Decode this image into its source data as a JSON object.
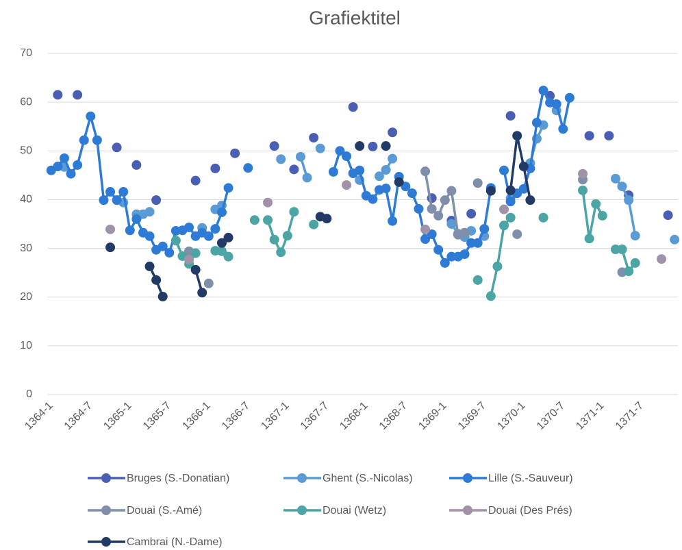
{
  "chart_data": {
    "type": "line",
    "title": "Grafiektitel",
    "categories": [
      "1364-1",
      null,
      null,
      null,
      null,
      null,
      "1364-7",
      null,
      null,
      null,
      null,
      null,
      "1365-1",
      null,
      null,
      null,
      null,
      null,
      "1365-7",
      null,
      null,
      null,
      null,
      null,
      "1366-1",
      null,
      null,
      null,
      null,
      null,
      "1366-7",
      null,
      null,
      null,
      null,
      null,
      "1367-1",
      null,
      null,
      null,
      null,
      null,
      "1367-7",
      null,
      null,
      null,
      null,
      null,
      "1368-1",
      null,
      null,
      null,
      null,
      null,
      "1368-7",
      null,
      null,
      null,
      null,
      null,
      "1369-1",
      null,
      null,
      null,
      null,
      null,
      "1369-7",
      null,
      null,
      null,
      null,
      null,
      "1370-1",
      null,
      null,
      null,
      null,
      null,
      "1370-7",
      null,
      null,
      null,
      null,
      null,
      "1371-1",
      null,
      null,
      null,
      null,
      null,
      "1371-7",
      null,
      null,
      null,
      null,
      null
    ],
    "ylim": [
      0,
      70
    ],
    "yticks": [
      0,
      10,
      20,
      30,
      40,
      50,
      60,
      70
    ],
    "grid": true,
    "legend": "bottom",
    "series": [
      {
        "name": "Bruges (S.-Donatian)",
        "color": "#4a5fb4",
        "values": [
          null,
          61.5,
          null,
          null,
          61.5,
          null,
          null,
          null,
          null,
          null,
          50.7,
          null,
          null,
          47.1,
          null,
          null,
          39.9,
          null,
          null,
          null,
          null,
          null,
          43.9,
          null,
          null,
          46.4,
          null,
          null,
          49.5,
          null,
          null,
          null,
          null,
          null,
          51.0,
          null,
          null,
          46.2,
          null,
          null,
          52.7,
          null,
          null,
          null,
          null,
          null,
          59.0,
          null,
          null,
          50.9,
          null,
          null,
          53.8,
          null,
          null,
          null,
          null,
          null,
          40.3,
          null,
          null,
          35.7,
          null,
          null,
          37.1,
          null,
          null,
          null,
          null,
          null,
          57.2,
          null,
          null,
          null,
          null,
          null,
          61.3,
          null,
          null,
          null,
          null,
          null,
          53.1,
          null,
          null,
          53.1,
          null,
          null,
          40.9,
          null,
          null,
          null,
          null,
          null,
          36.8,
          null
        ]
      },
      {
        "name": "Ghent (S.-Nicolas)",
        "color": "#5b9bd5",
        "values": [
          null,
          null,
          46.7,
          null,
          null,
          null,
          null,
          null,
          null,
          null,
          null,
          39.4,
          null,
          37.0,
          37.0,
          37.5,
          null,
          null,
          null,
          null,
          null,
          null,
          null,
          34.2,
          null,
          38.0,
          38.8,
          null,
          null,
          null,
          null,
          null,
          null,
          null,
          null,
          48.3,
          null,
          null,
          48.8,
          44.5,
          null,
          50.5,
          null,
          null,
          null,
          null,
          null,
          44.0,
          null,
          null,
          44.8,
          46.1,
          48.4,
          null,
          null,
          null,
          null,
          null,
          null,
          null,
          null,
          35.0,
          33.0,
          32.3,
          33.6,
          null,
          32.5,
          null,
          null,
          null,
          40.3,
          null,
          null,
          47.5,
          52.5,
          55.3,
          null,
          58.3,
          null,
          null,
          null,
          null,
          null,
          null,
          null,
          null,
          44.3,
          42.7,
          39.9,
          32.6,
          null,
          null,
          null,
          null,
          null,
          31.8
        ]
      },
      {
        "name": "Lille (S.-Sauveur)",
        "color": "#2e7bd6",
        "values": [
          46.0,
          46.8,
          48.5,
          45.3,
          47.1,
          52.2,
          57.1,
          52.2,
          39.9,
          41.6,
          39.9,
          41.6,
          33.7,
          36.0,
          33.2,
          32.5,
          29.7,
          30.4,
          29.1,
          33.6,
          33.7,
          34.3,
          32.5,
          33.2,
          32.5,
          34.0,
          37.4,
          42.4,
          null,
          null,
          46.5,
          null,
          null,
          null,
          null,
          null,
          null,
          null,
          null,
          null,
          null,
          null,
          null,
          45.7,
          50.0,
          48.9,
          45.4,
          46.0,
          40.8,
          40.1,
          42.0,
          42.3,
          35.6,
          44.7,
          42.7,
          41.3,
          38.1,
          31.9,
          32.9,
          29.7,
          27.0,
          28.3,
          28.3,
          28.8,
          31.1,
          31.1,
          34.0,
          42.4,
          null,
          46.0,
          39.6,
          41.3,
          42.2,
          46.4,
          55.8,
          62.4,
          59.9,
          59.6,
          54.5,
          60.9,
          null,
          null,
          null,
          null,
          null,
          null,
          null,
          null,
          null,
          null,
          null,
          null,
          null,
          null,
          null,
          null
        ]
      },
      {
        "name": "Douai (S.-Amé)",
        "color": "#7f8fa9",
        "values": [
          null,
          null,
          null,
          null,
          null,
          null,
          null,
          null,
          null,
          null,
          null,
          null,
          null,
          null,
          null,
          null,
          null,
          null,
          null,
          null,
          null,
          29.4,
          null,
          null,
          22.8,
          null,
          null,
          null,
          null,
          null,
          null,
          null,
          null,
          null,
          null,
          null,
          null,
          null,
          null,
          null,
          null,
          null,
          null,
          null,
          null,
          null,
          null,
          null,
          null,
          null,
          null,
          null,
          null,
          null,
          null,
          null,
          null,
          45.8,
          38.1,
          36.7,
          39.9,
          41.8,
          32.8,
          33.2,
          null,
          43.4,
          null,
          null,
          null,
          null,
          null,
          32.9,
          null,
          null,
          null,
          null,
          null,
          null,
          null,
          null,
          null,
          44.1,
          null,
          null,
          null,
          null,
          null,
          25.1,
          null,
          null,
          null,
          null,
          null,
          null,
          null,
          null
        ]
      },
      {
        "name": "Douai (Wetz)",
        "color": "#4ba5a5",
        "values": [
          null,
          null,
          null,
          null,
          null,
          null,
          null,
          null,
          null,
          null,
          null,
          null,
          null,
          null,
          null,
          null,
          null,
          null,
          null,
          31.6,
          28.4,
          26.8,
          29.0,
          null,
          null,
          29.5,
          29.4,
          28.3,
          null,
          null,
          null,
          35.8,
          null,
          35.8,
          31.8,
          29.2,
          32.6,
          37.5,
          null,
          null,
          34.9,
          null,
          null,
          null,
          null,
          null,
          null,
          null,
          null,
          null,
          null,
          null,
          null,
          null,
          null,
          null,
          null,
          null,
          null,
          null,
          null,
          null,
          null,
          null,
          null,
          23.5,
          null,
          20.2,
          26.3,
          34.7,
          36.3,
          null,
          null,
          null,
          null,
          36.3,
          null,
          null,
          null,
          null,
          null,
          41.9,
          32.0,
          39.1,
          36.7,
          null,
          29.8,
          29.8,
          25.3,
          27.0,
          null,
          null,
          null,
          null,
          null,
          null
        ]
      },
      {
        "name": "Douai (Des Prés)",
        "color": "#a093a8",
        "values": [
          null,
          null,
          null,
          null,
          null,
          null,
          null,
          null,
          null,
          33.9,
          null,
          null,
          null,
          null,
          null,
          null,
          null,
          null,
          null,
          null,
          null,
          27.7,
          null,
          null,
          null,
          null,
          null,
          null,
          null,
          null,
          null,
          null,
          null,
          39.4,
          null,
          null,
          null,
          null,
          null,
          null,
          null,
          null,
          null,
          null,
          null,
          43.0,
          null,
          null,
          null,
          null,
          null,
          null,
          null,
          null,
          null,
          null,
          null,
          33.9,
          null,
          null,
          null,
          null,
          null,
          null,
          null,
          null,
          null,
          null,
          null,
          38.0,
          null,
          null,
          null,
          null,
          null,
          null,
          null,
          null,
          null,
          null,
          null,
          45.3,
          null,
          null,
          null,
          null,
          null,
          null,
          null,
          null,
          null,
          null,
          null,
          27.8,
          null,
          null
        ]
      },
      {
        "name": "Cambrai (N.-Dame)",
        "color": "#223a66",
        "values": [
          null,
          null,
          null,
          null,
          null,
          null,
          null,
          null,
          null,
          30.2,
          null,
          null,
          null,
          null,
          null,
          26.3,
          23.5,
          20.1,
          null,
          null,
          null,
          null,
          25.6,
          20.9,
          null,
          null,
          31.1,
          32.2,
          null,
          null,
          null,
          null,
          null,
          null,
          null,
          null,
          null,
          null,
          null,
          null,
          null,
          36.5,
          36.1,
          null,
          null,
          null,
          null,
          51.0,
          null,
          null,
          null,
          51.0,
          null,
          43.6,
          null,
          null,
          null,
          null,
          null,
          null,
          null,
          null,
          null,
          null,
          null,
          null,
          null,
          41.8,
          null,
          null,
          41.9,
          53.1,
          46.8,
          39.9,
          null,
          null,
          null,
          null,
          null,
          null,
          null,
          null,
          null,
          null,
          null,
          null,
          null,
          null,
          null,
          null,
          null,
          null,
          null,
          null,
          null,
          null
        ]
      }
    ]
  }
}
